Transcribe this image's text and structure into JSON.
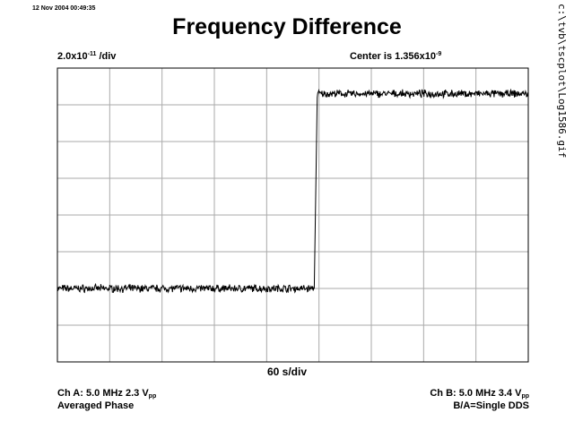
{
  "header": {
    "timestamp": "12 Nov 2004 00:49:35",
    "title": "Frequency Difference"
  },
  "scale": {
    "y_per_div_mantissa": "2.0x10",
    "y_per_div_exp": "-11",
    "y_per_div_unit": " /div",
    "center_prefix": "Center is 1.356x10",
    "center_exp": "-9",
    "x_per_div": "60 s/div"
  },
  "channels": {
    "a_freq": "Ch A: 5.0 MHz 2.3 V",
    "a_sub": "pp",
    "a_mode": "Averaged Phase",
    "b_freq": "Ch B: 5.0 MHz 3.4 V",
    "b_sub": "pp",
    "b_mode": "B/A=Single DDS"
  },
  "file_path": "c:\\tvb\\tscplot\\Log1586.gif",
  "chart_data": {
    "type": "line",
    "x_unit": "s",
    "x_per_div": 60,
    "x_divisions": 9,
    "y_per_div": 2e-11,
    "y_center": 1.356e-09,
    "y_divisions": 8,
    "grid": true,
    "series": [
      {
        "segments": [
          {
            "x_range": [
              0,
              295
            ],
            "level_divs_from_center": -2.0,
            "noise_divs": 0.08
          },
          {
            "x_range": [
              295,
              298
            ],
            "transition": true
          },
          {
            "x_range": [
              298,
              540
            ],
            "level_divs_from_center": 3.3,
            "noise_divs": 0.08
          }
        ]
      }
    ]
  }
}
